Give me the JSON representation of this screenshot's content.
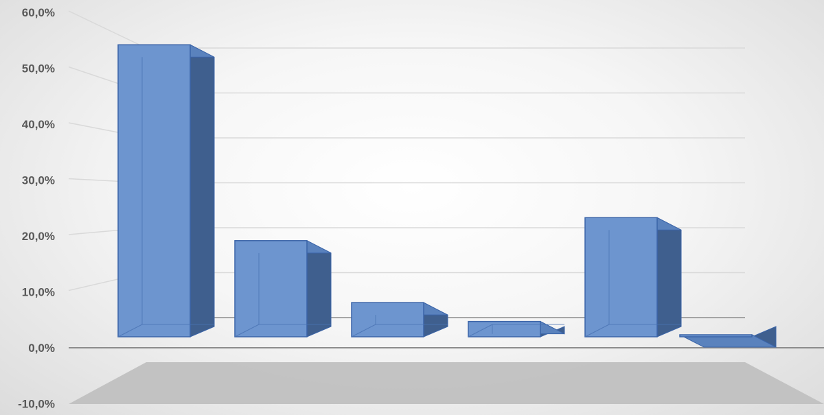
{
  "chart_data": {
    "type": "bar",
    "style": "3d-column",
    "values": [
      49.5,
      16.3,
      5.8,
      2.6,
      20.2,
      0.3
    ],
    "ylim": [
      -10,
      60
    ],
    "yticks": [
      "60,0%",
      "50,0%",
      "40,0%",
      "30,0%",
      "20,0%",
      "10,0%",
      "0,0%",
      "-10,0%"
    ],
    "grid": true,
    "colors": {
      "front": "#6d95cf",
      "side": "#3f5f8e",
      "top": "#5a82bd",
      "edge": "#3b64a8",
      "floor": "#c0c0c0",
      "gridline": "#d9d9d9",
      "axis": "#8c8c8c"
    }
  }
}
